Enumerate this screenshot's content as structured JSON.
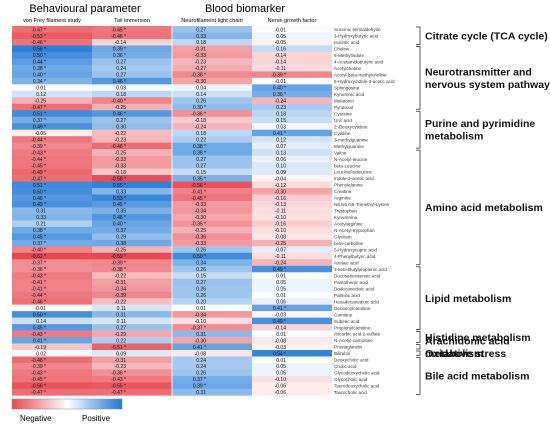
{
  "chart_data": {
    "type": "heatmap",
    "group_headers": [
      "Behavioural parameter",
      "Blood biomarker"
    ],
    "columns": [
      "von Frey filament study",
      "Tail immersion",
      "Neurofilament light chain",
      "Nerve growth factor"
    ],
    "rows": [
      "Succinic semialdehyde",
      "3-Hydroxybutyric acid",
      "Isocitric acid",
      "Choline",
      "6-Methylindole",
      "4-Acetamidobutyric acid",
      "Acetylcholine",
      "Acetyl-beta-methylcholine",
      "5-Hydroxyindole-3-acetic acid",
      "Sphingosine",
      "Kynurenic acid",
      "Melatonin",
      "Pyridoxal",
      "Cytosine",
      "Uric acid",
      "2'-Deoxycytidine",
      "Cytidine",
      "3-methylguanine",
      "Methylguanine",
      "Valine",
      "N-Acetyl-leucine",
      "beta-Leucine",
      "Leucine/Isoleucine",
      "Indole-3-acetic acid",
      "Phenylalanine",
      "Creatine",
      "Arginine",
      "N6,N6,N6-Trimethyl-Lysine",
      "Tryptophan",
      "Kynurenine",
      "Acetylarginine",
      "N-Acetyl-tryptophan",
      "Glycitein",
      "beta-carboline",
      "5-Hydroxycapric acid",
      "4-Phenylbutyric acid",
      "Azelaic acid",
      "3-keto-Butylpropionic acid",
      "Docosahexaenoic acid",
      "Pantothenic acid",
      "Dodecanedioic acid",
      "Palmitic acid",
      "Hexadecanedioic acid",
      "Decanoylcarnitine",
      "Carnitine",
      "Suberic acid",
      "Propionylcarnitine",
      "Ascorbic acid 2-sulfate",
      "N-Acetyl-carnosine",
      "Prostaglandin",
      "Bilirubin",
      "Deoxycholic acid",
      "Cholic acid",
      "Glycodeoxycholic acid",
      "Glycocholic acid",
      "Taurodeoxycholic acid",
      "Taurocholic acid"
    ],
    "values": [
      [
        -0.47,
        -0.45,
        0.27,
        -0.01
      ],
      [
        -0.53,
        -0.46,
        0.33,
        0.05
      ],
      [
        -0.46,
        -0.14,
        0.18,
        -0.05
      ],
      [
        0.56,
        0.39,
        -0.31,
        0.16
      ],
      [
        0.5,
        0.36,
        -0.33,
        -0.14
      ],
      [
        0.44,
        0.27,
        -0.23,
        -0.14
      ],
      [
        0.38,
        0.24,
        -0.27,
        -0.11
      ],
      [
        0.4,
        0.27,
        -0.38,
        -0.39
      ],
      [
        0.34,
        0.46,
        -0.3,
        -0.01
      ],
      [
        0.01,
        0.03,
        0.04,
        0.4
      ],
      [
        0.12,
        0.18,
        0.14,
        0.36
      ],
      [
        -0.25,
        -0.4,
        0.26,
        -0.24
      ],
      [
        -0.47,
        -0.25,
        0.3,
        0.23
      ],
      [
        0.51,
        0.46,
        -0.36,
        0.18
      ],
      [
        0.37,
        0.27,
        -0.18,
        0.15
      ],
      [
        0.49,
        0.3,
        -0.24,
        0.03
      ],
      [
        -0.05,
        -0.22,
        0.18,
        0.41
      ],
      [
        -0.44,
        -0.23,
        0.22,
        0.12
      ],
      [
        -0.39,
        -0.48,
        0.38,
        0.07
      ],
      [
        -0.43,
        -0.25,
        0.38,
        0.13
      ],
      [
        -0.44,
        -0.33,
        0.27,
        0.06
      ],
      [
        -0.45,
        -0.33,
        0.27,
        0.1
      ],
      [
        -0.49,
        -0.18,
        0.15,
        0.09
      ],
      [
        -0.47,
        -0.58,
        0.35,
        -0.04
      ],
      [
        0.51,
        0.55,
        -0.56,
        -0.12
      ],
      [
        0.5,
        0.33,
        -0.41,
        -0.3
      ],
      [
        0.46,
        0.53,
        -0.45,
        -0.16
      ],
      [
        0.49,
        0.45,
        -0.33,
        -0.13
      ],
      [
        0.31,
        0.35,
        -0.34,
        -0.11
      ],
      [
        0.33,
        0.46,
        -0.3,
        -0.1
      ],
      [
        0.21,
        0.4,
        -0.35,
        -0.16
      ],
      [
        0.38,
        0.37,
        -0.25,
        -0.1
      ],
      [
        0.45,
        0.29,
        -0.36,
        -0.08
      ],
      [
        0.37,
        0.38,
        -0.33,
        -0.25
      ],
      [
        -0.4,
        -0.25,
        0.26,
        0.07
      ],
      [
        -0.61,
        -0.59,
        0.5,
        -0.11
      ],
      [
        -0.37,
        -0.39,
        0.34,
        -0.24
      ],
      [
        -0.36,
        -0.38,
        0.26,
        0.49
      ],
      [
        -0.43,
        -0.22,
        0.15,
        0.01
      ],
      [
        -0.41,
        -0.31,
        0.27,
        0.05
      ],
      [
        -0.41,
        -0.34,
        0.26,
        0.05
      ],
      [
        -0.44,
        -0.39,
        0.26,
        0.01
      ],
      [
        -0.46,
        -0.22,
        0.2,
        0.06
      ],
      [
        -0.01,
        0.11,
        0.01,
        0.41
      ],
      [
        0.5,
        0.31,
        -0.34,
        -0.03
      ],
      [
        0.14,
        0.11,
        -0.1,
        0.49
      ],
      [
        0.45,
        0.27,
        -0.37,
        -0.14
      ],
      [
        -0.43,
        -0.29,
        0.31,
        0.01
      ],
      [
        0.41,
        0.22,
        -0.3,
        -0.08
      ],
      [
        -0.19,
        -0.51,
        0.41,
        -0.03
      ],
      [
        0.02,
        0.09,
        -0.08,
        0.54
      ],
      [
        -0.48,
        -0.31,
        0.24,
        0.01
      ],
      [
        -0.39,
        -0.23,
        0.24,
        0.05
      ],
      [
        -0.43,
        -0.36,
        0.26,
        0.05
      ],
      [
        -0.45,
        -0.43,
        0.37,
        -0.1
      ],
      [
        -0.56,
        -0.55,
        0.39,
        -0.06
      ],
      [
        -0.47,
        -0.47,
        0.31,
        -0.06
      ]
    ],
    "significant": [
      [
        1,
        1,
        0,
        0
      ],
      [
        1,
        1,
        0,
        0
      ],
      [
        1,
        0,
        0,
        0
      ],
      [
        1,
        1,
        0,
        0
      ],
      [
        1,
        1,
        0,
        0
      ],
      [
        1,
        0,
        0,
        0
      ],
      [
        1,
        0,
        0,
        0
      ],
      [
        1,
        0,
        1,
        1
      ],
      [
        1,
        1,
        0,
        0
      ],
      [
        0,
        0,
        0,
        1
      ],
      [
        0,
        0,
        0,
        1
      ],
      [
        0,
        1,
        0,
        0
      ],
      [
        1,
        0,
        1,
        0
      ],
      [
        1,
        1,
        1,
        0
      ],
      [
        1,
        0,
        0,
        0
      ],
      [
        1,
        0,
        0,
        0
      ],
      [
        0,
        0,
        0,
        1
      ],
      [
        1,
        0,
        0,
        0
      ],
      [
        1,
        1,
        1,
        0
      ],
      [
        1,
        0,
        1,
        0
      ],
      [
        1,
        0,
        0,
        0
      ],
      [
        1,
        0,
        0,
        0
      ],
      [
        1,
        0,
        0,
        0
      ],
      [
        1,
        1,
        1,
        0
      ],
      [
        1,
        1,
        1,
        0
      ],
      [
        1,
        0,
        1,
        0
      ],
      [
        1,
        1,
        1,
        0
      ],
      [
        1,
        1,
        0,
        0
      ],
      [
        0,
        0,
        0,
        0
      ],
      [
        0,
        1,
        0,
        0
      ],
      [
        0,
        1,
        1,
        0
      ],
      [
        1,
        0,
        0,
        0
      ],
      [
        1,
        0,
        0,
        0
      ],
      [
        1,
        0,
        0,
        0
      ],
      [
        1,
        0,
        0,
        0
      ],
      [
        1,
        1,
        1,
        0
      ],
      [
        1,
        1,
        0,
        0
      ],
      [
        1,
        1,
        0,
        1
      ],
      [
        1,
        0,
        0,
        0
      ],
      [
        1,
        0,
        0,
        0
      ],
      [
        1,
        0,
        0,
        0
      ],
      [
        1,
        0,
        0,
        0
      ],
      [
        1,
        0,
        0,
        0
      ],
      [
        0,
        0,
        0,
        1
      ],
      [
        1,
        0,
        0,
        0
      ],
      [
        0,
        0,
        0,
        1
      ],
      [
        1,
        0,
        1,
        0
      ],
      [
        1,
        0,
        0,
        0
      ],
      [
        1,
        0,
        0,
        0
      ],
      [
        0,
        1,
        1,
        0
      ],
      [
        0,
        0,
        0,
        1
      ],
      [
        1,
        0,
        0,
        0
      ],
      [
        1,
        0,
        0,
        0
      ],
      [
        1,
        1,
        0,
        0
      ],
      [
        1,
        1,
        1,
        0
      ],
      [
        1,
        1,
        1,
        0
      ],
      [
        1,
        1,
        0,
        0
      ]
    ],
    "categories": [
      {
        "label": "Citrate cycle (TCA cycle)",
        "first_row": 0,
        "last_row": 2
      },
      {
        "label": "Neurotransmitter and nervous system pathway",
        "first_row": 3,
        "last_row": 12
      },
      {
        "label": "Purine and pyrimidine metabolism",
        "first_row": 13,
        "last_row": 18
      },
      {
        "label": "Amino acid metabolism",
        "first_row": 19,
        "last_row": 36
      },
      {
        "label": "Lipid metabolism",
        "first_row": 37,
        "last_row": 46
      },
      {
        "label": "Histidine metabolism",
        "first_row": 47,
        "last_row": 48
      },
      {
        "label": "Arachidonic acid metabolism",
        "first_row": 49,
        "last_row": 49
      },
      {
        "label": "Oxidative stress",
        "first_row": 50,
        "last_row": 50
      },
      {
        "label": "Bile acid metabolism",
        "first_row": 51,
        "last_row": 56
      }
    ],
    "legend": {
      "negative_label": "Negative",
      "positive_label": "Positive",
      "placement": "bottom-left"
    },
    "colors": {
      "negative": "#e8474f",
      "neutral": "#ffffff",
      "positive": "#1e78d6",
      "line": "#333333"
    }
  }
}
